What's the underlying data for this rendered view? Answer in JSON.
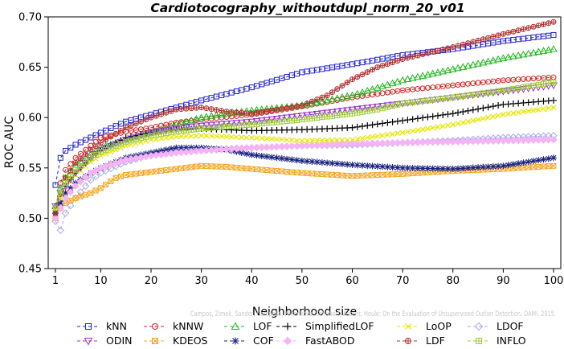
{
  "chart_data": {
    "type": "line",
    "title": "Cardiotocography_withoutdupl_norm_20_v01",
    "xlabel": "Neighborhood size",
    "ylabel": "ROC AUC",
    "xlim": [
      1,
      100
    ],
    "ylim": [
      0.45,
      0.7
    ],
    "x_ticks": [
      "1",
      "10",
      "20",
      "30",
      "40",
      "50",
      "60",
      "70",
      "80",
      "90",
      "100"
    ],
    "y_ticks": [
      "0.45",
      "0.50",
      "0.55",
      "0.60",
      "0.65",
      "0.70"
    ],
    "grid": false,
    "legend_position": "bottom",
    "watermark": "Campos, Zimek, Sander, Campello, Micenkova, Schubert, Assent, Houle: On the Evaluation of Unsupervised Outlier Detection. DAMI, 2015.",
    "series": [
      {
        "name": "kNN",
        "color": "#1f1fd6",
        "marker": "square",
        "points": [
          [
            1,
            0.533
          ],
          [
            2,
            0.56
          ],
          [
            3,
            0.567
          ],
          [
            5,
            0.573
          ],
          [
            10,
            0.585
          ],
          [
            15,
            0.596
          ],
          [
            20,
            0.603
          ],
          [
            25,
            0.61
          ],
          [
            30,
            0.617
          ],
          [
            40,
            0.63
          ],
          [
            50,
            0.645
          ],
          [
            60,
            0.653
          ],
          [
            70,
            0.662
          ],
          [
            80,
            0.668
          ],
          [
            90,
            0.676
          ],
          [
            100,
            0.682
          ]
        ]
      },
      {
        "name": "kNNW",
        "color": "#d62020",
        "marker": "circle",
        "points": [
          [
            1,
            0.508
          ],
          [
            2,
            0.535
          ],
          [
            3,
            0.548
          ],
          [
            5,
            0.56
          ],
          [
            8,
            0.572
          ],
          [
            10,
            0.58
          ],
          [
            15,
            0.586
          ],
          [
            20,
            0.59
          ],
          [
            25,
            0.595
          ],
          [
            30,
            0.598
          ],
          [
            40,
            0.603
          ],
          [
            50,
            0.611
          ],
          [
            60,
            0.62
          ],
          [
            70,
            0.627
          ],
          [
            80,
            0.632
          ],
          [
            90,
            0.637
          ],
          [
            100,
            0.64
          ]
        ]
      },
      {
        "name": "LOF",
        "color": "#1db81d",
        "marker": "triangle",
        "points": [
          [
            1,
            0.512
          ],
          [
            2,
            0.53
          ],
          [
            3,
            0.54
          ],
          [
            5,
            0.553
          ],
          [
            8,
            0.563
          ],
          [
            10,
            0.57
          ],
          [
            15,
            0.578
          ],
          [
            20,
            0.585
          ],
          [
            25,
            0.593
          ],
          [
            30,
            0.6
          ],
          [
            35,
            0.604
          ],
          [
            40,
            0.607
          ],
          [
            50,
            0.612
          ],
          [
            60,
            0.622
          ],
          [
            70,
            0.637
          ],
          [
            80,
            0.648
          ],
          [
            90,
            0.659
          ],
          [
            100,
            0.668
          ]
        ]
      },
      {
        "name": "SimplifiedLOF",
        "color": "#000000",
        "marker": "plus",
        "points": [
          [
            1,
            0.51
          ],
          [
            2,
            0.522
          ],
          [
            3,
            0.532
          ],
          [
            5,
            0.545
          ],
          [
            8,
            0.56
          ],
          [
            10,
            0.567
          ],
          [
            15,
            0.58
          ],
          [
            20,
            0.585
          ],
          [
            25,
            0.588
          ],
          [
            30,
            0.589
          ],
          [
            35,
            0.588
          ],
          [
            40,
            0.587
          ],
          [
            50,
            0.588
          ],
          [
            60,
            0.59
          ],
          [
            70,
            0.597
          ],
          [
            80,
            0.604
          ],
          [
            90,
            0.613
          ],
          [
            100,
            0.617
          ]
        ]
      },
      {
        "name": "LoOP",
        "color": "#e6e600",
        "marker": "x",
        "points": [
          [
            1,
            0.508
          ],
          [
            2,
            0.52
          ],
          [
            3,
            0.53
          ],
          [
            5,
            0.543
          ],
          [
            8,
            0.556
          ],
          [
            10,
            0.562
          ],
          [
            15,
            0.572
          ],
          [
            20,
            0.578
          ],
          [
            25,
            0.581
          ],
          [
            30,
            0.582
          ],
          [
            40,
            0.58
          ],
          [
            50,
            0.577
          ],
          [
            60,
            0.578
          ],
          [
            70,
            0.585
          ],
          [
            80,
            0.593
          ],
          [
            90,
            0.603
          ],
          [
            100,
            0.61
          ]
        ]
      },
      {
        "name": "LDOF",
        "color": "#a9a9e8",
        "marker": "diamond",
        "points": [
          [
            1,
            0.497
          ],
          [
            2,
            0.488
          ],
          [
            3,
            0.505
          ],
          [
            5,
            0.52
          ],
          [
            8,
            0.538
          ],
          [
            10,
            0.545
          ],
          [
            15,
            0.556
          ],
          [
            20,
            0.563
          ],
          [
            25,
            0.566
          ],
          [
            30,
            0.568
          ],
          [
            40,
            0.57
          ],
          [
            50,
            0.572
          ],
          [
            60,
            0.573
          ],
          [
            70,
            0.575
          ],
          [
            80,
            0.577
          ],
          [
            90,
            0.58
          ],
          [
            100,
            0.582
          ]
        ]
      },
      {
        "name": "ODIN",
        "color": "#9b30d0",
        "marker": "triangle-down",
        "points": [
          [
            1,
            0.512
          ],
          [
            2,
            0.525
          ],
          [
            3,
            0.532
          ],
          [
            5,
            0.545
          ],
          [
            8,
            0.56
          ],
          [
            10,
            0.568
          ],
          [
            15,
            0.578
          ],
          [
            20,
            0.585
          ],
          [
            25,
            0.589
          ],
          [
            30,
            0.592
          ],
          [
            40,
            0.596
          ],
          [
            50,
            0.602
          ],
          [
            60,
            0.608
          ],
          [
            70,
            0.614
          ],
          [
            80,
            0.62
          ],
          [
            90,
            0.626
          ],
          [
            100,
            0.632
          ]
        ]
      },
      {
        "name": "KDEOS",
        "color": "#f5a623",
        "marker": "boxtimes",
        "points": [
          [
            1,
            0.5
          ],
          [
            2,
            0.51
          ],
          [
            3,
            0.515
          ],
          [
            5,
            0.52
          ],
          [
            8,
            0.525
          ],
          [
            10,
            0.53
          ],
          [
            13,
            0.54
          ],
          [
            15,
            0.543
          ],
          [
            20,
            0.546
          ],
          [
            25,
            0.549
          ],
          [
            30,
            0.552
          ],
          [
            35,
            0.551
          ],
          [
            40,
            0.549
          ],
          [
            50,
            0.545
          ],
          [
            60,
            0.542
          ],
          [
            70,
            0.544
          ],
          [
            80,
            0.547
          ],
          [
            90,
            0.549
          ],
          [
            100,
            0.552
          ]
        ]
      },
      {
        "name": "COF",
        "color": "#1a237e",
        "marker": "asterisk",
        "points": [
          [
            1,
            0.505
          ],
          [
            2,
            0.515
          ],
          [
            3,
            0.525
          ],
          [
            5,
            0.535
          ],
          [
            8,
            0.545
          ],
          [
            10,
            0.55
          ],
          [
            15,
            0.56
          ],
          [
            20,
            0.565
          ],
          [
            25,
            0.57
          ],
          [
            30,
            0.57
          ],
          [
            35,
            0.568
          ],
          [
            40,
            0.563
          ],
          [
            50,
            0.557
          ],
          [
            60,
            0.553
          ],
          [
            70,
            0.55
          ],
          [
            80,
            0.549
          ],
          [
            90,
            0.552
          ],
          [
            100,
            0.56
          ]
        ]
      },
      {
        "name": "FastABOD",
        "color": "#f5b3f5",
        "marker": "diamond-filled",
        "points": [
          [
            1,
            0.5
          ],
          [
            2,
            0.51
          ],
          [
            3,
            0.52
          ],
          [
            5,
            0.532
          ],
          [
            8,
            0.545
          ],
          [
            10,
            0.55
          ],
          [
            15,
            0.558
          ],
          [
            20,
            0.562
          ],
          [
            25,
            0.565
          ],
          [
            30,
            0.567
          ],
          [
            40,
            0.57
          ],
          [
            50,
            0.572
          ],
          [
            60,
            0.574
          ],
          [
            70,
            0.575
          ],
          [
            80,
            0.576
          ],
          [
            90,
            0.577
          ],
          [
            100,
            0.578
          ]
        ]
      },
      {
        "name": "LDF",
        "color": "#b03030",
        "marker": "circle-plus",
        "points": [
          [
            1,
            0.505
          ],
          [
            2,
            0.525
          ],
          [
            3,
            0.54
          ],
          [
            5,
            0.555
          ],
          [
            8,
            0.568
          ],
          [
            10,
            0.575
          ],
          [
            15,
            0.59
          ],
          [
            20,
            0.6
          ],
          [
            25,
            0.608
          ],
          [
            30,
            0.61
          ],
          [
            35,
            0.606
          ],
          [
            40,
            0.604
          ],
          [
            50,
            0.612
          ],
          [
            55,
            0.622
          ],
          [
            60,
            0.638
          ],
          [
            65,
            0.65
          ],
          [
            70,
            0.658
          ],
          [
            80,
            0.67
          ],
          [
            90,
            0.683
          ],
          [
            100,
            0.695
          ]
        ]
      },
      {
        "name": "INFLO",
        "color": "#9acd32",
        "marker": "boxplus",
        "points": [
          [
            1,
            0.51
          ],
          [
            2,
            0.525
          ],
          [
            3,
            0.535
          ],
          [
            5,
            0.548
          ],
          [
            8,
            0.56
          ],
          [
            10,
            0.566
          ],
          [
            15,
            0.576
          ],
          [
            20,
            0.582
          ],
          [
            25,
            0.586
          ],
          [
            30,
            0.589
          ],
          [
            40,
            0.593
          ],
          [
            50,
            0.598
          ],
          [
            60,
            0.604
          ],
          [
            65,
            0.608
          ],
          [
            70,
            0.614
          ],
          [
            80,
            0.62
          ],
          [
            90,
            0.627
          ],
          [
            100,
            0.635
          ]
        ]
      }
    ],
    "legend_rows": [
      [
        "kNN",
        "kNNW",
        "LOF",
        "SimplifiedLOF",
        "LoOP",
        "LDOF"
      ],
      [
        "ODIN",
        "KDEOS",
        "COF",
        "FastABOD",
        "LDF",
        "INFLO"
      ]
    ]
  }
}
